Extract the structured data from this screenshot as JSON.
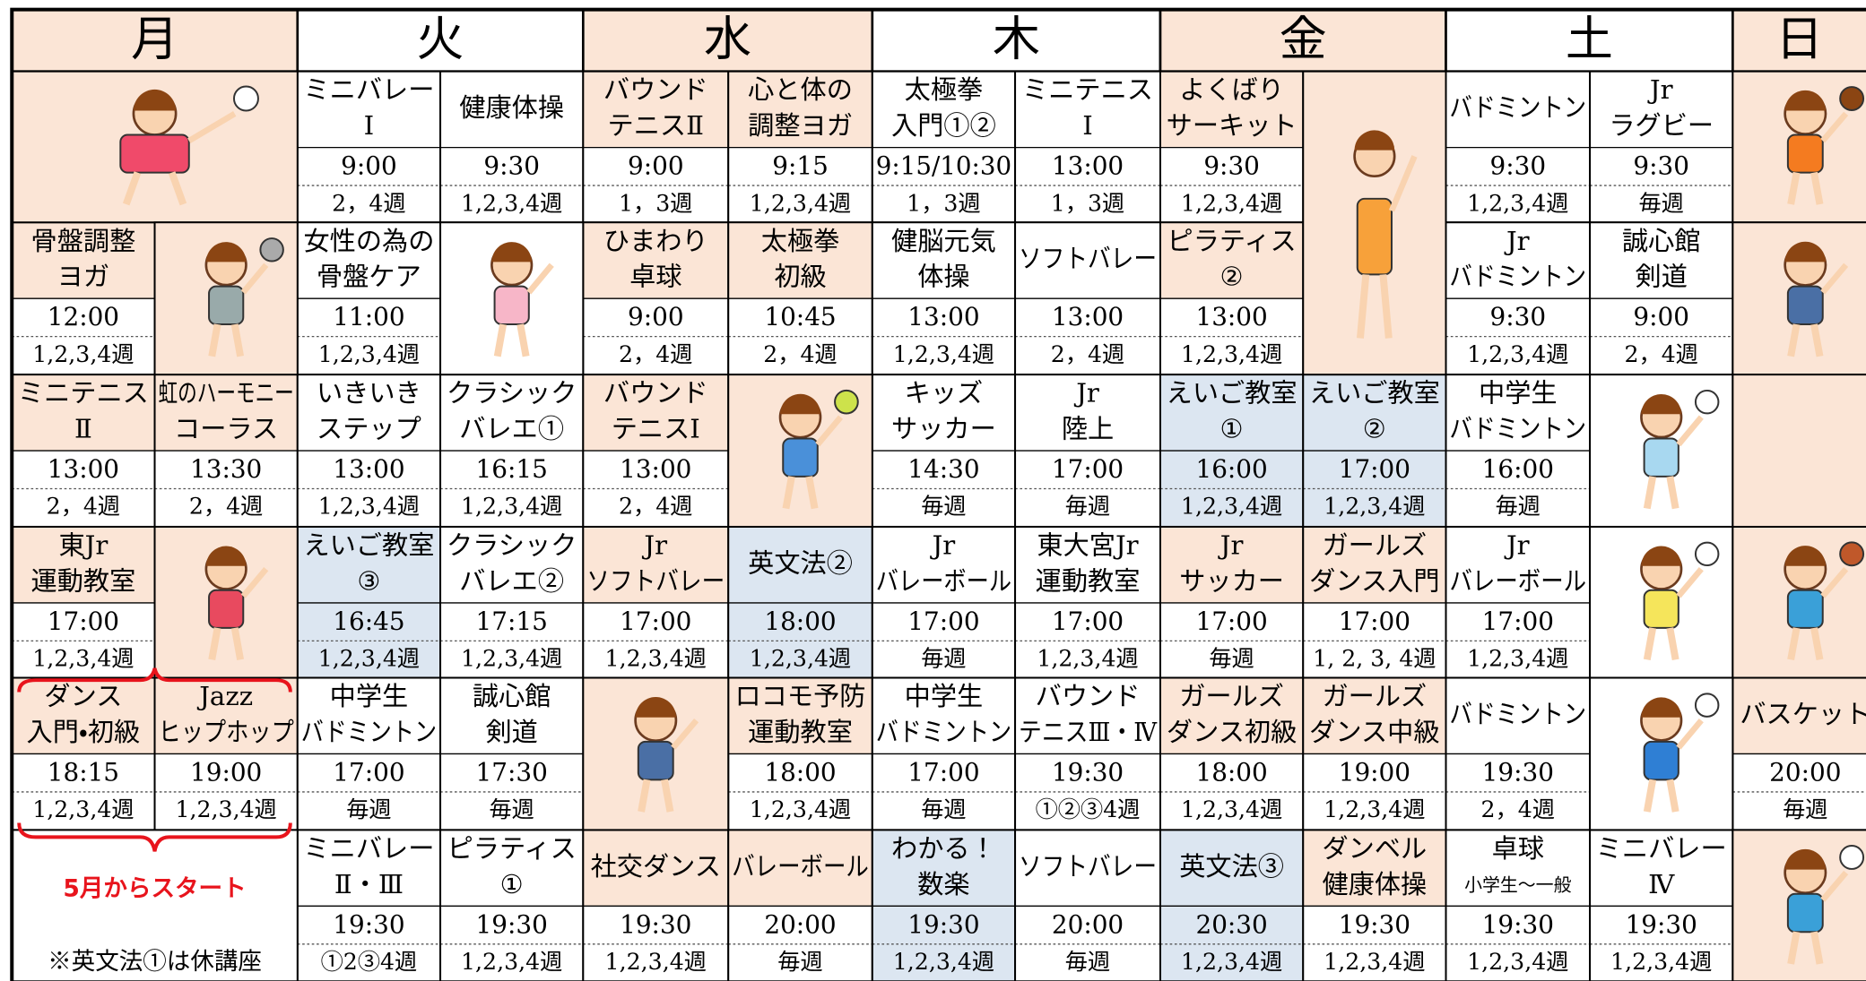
{
  "days": [
    "月",
    "火",
    "水",
    "木",
    "金",
    "土",
    "日"
  ],
  "classes": [
    {
      "name": [
        "ミニバレー",
        "Ⅰ"
      ],
      "time": "9:00",
      "weeks": "2，4週"
    },
    {
      "name": [
        "健康体操"
      ],
      "time": "9:30",
      "weeks": "1,2,3,4週"
    },
    {
      "name": [
        "バウンド",
        "テニスⅡ"
      ],
      "time": "9:00",
      "weeks": "1，3週"
    },
    {
      "name": [
        "心と体の",
        "調整ヨガ"
      ],
      "time": "9:15",
      "weeks": "1,2,3,4週"
    },
    {
      "name": [
        "太極拳",
        "入門①②"
      ],
      "time": "9:15/10:30",
      "weeks": "1，3週"
    },
    {
      "name": [
        "ミニテニス",
        "Ⅰ"
      ],
      "time": "13:00",
      "weeks": "1，3週"
    },
    {
      "name": [
        "よくばり",
        "サーキット"
      ],
      "time": "9:30",
      "weeks": "1,2,3,4週"
    },
    {
      "name": [
        "バドミントン"
      ],
      "time": "9:30",
      "weeks": "1,2,3,4週"
    },
    {
      "name": [
        "Jr",
        "ラグビー"
      ],
      "time": "9:30",
      "weeks": "毎週"
    },
    {
      "name": [
        "骨盤調整",
        "ヨガ"
      ],
      "time": "12:00",
      "weeks": "1,2,3,4週"
    },
    {
      "name": [
        "女性の為の",
        "骨盤ケア"
      ],
      "time": "11:00",
      "weeks": "1,2,3,4週"
    },
    {
      "name": [
        "ひまわり",
        "卓球"
      ],
      "time": "9:00",
      "weeks": "2，4週"
    },
    {
      "name": [
        "太極拳",
        "初級"
      ],
      "time": "10:45",
      "weeks": "2，4週"
    },
    {
      "name": [
        "健脳元気",
        "体操"
      ],
      "time": "13:00",
      "weeks": "1,2,3,4週"
    },
    {
      "name": [
        "ソフトバレー"
      ],
      "time": "13:00",
      "weeks": "2，4週"
    },
    {
      "name": [
        "ピラティス",
        "②"
      ],
      "time": "13:00",
      "weeks": "1,2,3,4週"
    },
    {
      "name": [
        "Jr",
        "バドミントン"
      ],
      "time": "9:30",
      "weeks": "1,2,3,4週"
    },
    {
      "name": [
        "誠心館",
        "剣道"
      ],
      "time": "9:00",
      "weeks": "2，4週"
    },
    {
      "name": [
        "ミニテニス",
        "Ⅱ"
      ],
      "time": "13:00",
      "weeks": "2，4週"
    },
    {
      "name": [
        "虹のハーモニー",
        "コーラス"
      ],
      "time": "13:30",
      "weeks": "2，4週"
    },
    {
      "name": [
        "いきいき",
        "ステップ"
      ],
      "time": "13:00",
      "weeks": "1,2,3,4週"
    },
    {
      "name": [
        "クラシック",
        "バレエ①"
      ],
      "time": "16:15",
      "weeks": "1,2,3,4週"
    },
    {
      "name": [
        "バウンド",
        "テニスⅠ"
      ],
      "time": "13:00",
      "weeks": "2，4週"
    },
    {
      "name": [
        "キッズ",
        "サッカー"
      ],
      "time": "14:30",
      "weeks": "毎週"
    },
    {
      "name": [
        "Jr",
        "陸上"
      ],
      "time": "17:00",
      "weeks": "毎週"
    },
    {
      "name": [
        "えいご教室",
        "①"
      ],
      "time": "16:00",
      "weeks": "1,2,3,4週"
    },
    {
      "name": [
        "えいご教室",
        "②"
      ],
      "time": "17:00",
      "weeks": "1,2,3,4週"
    },
    {
      "name": [
        "中学生",
        "バドミントン"
      ],
      "time": "16:00",
      "weeks": "毎週"
    },
    {
      "name": [
        "東Jr",
        "運動教室"
      ],
      "time": "17:00",
      "weeks": "1,2,3,4週"
    },
    {
      "name": [
        "えいご教室",
        "③"
      ],
      "time": "16:45",
      "weeks": "1,2,3,4週"
    },
    {
      "name": [
        "クラシック",
        "バレエ②"
      ],
      "time": "17:15",
      "weeks": "1,2,3,4週"
    },
    {
      "name": [
        "Jr",
        "ソフトバレー"
      ],
      "time": "17:00",
      "weeks": "1,2,3,4週"
    },
    {
      "name": [
        "英文法②"
      ],
      "time": "18:00",
      "weeks": "1,2,3,4週"
    },
    {
      "name": [
        "Jr",
        "バレーボール"
      ],
      "time": "17:00",
      "weeks": "毎週"
    },
    {
      "name": [
        "東大宮Jr",
        "運動教室"
      ],
      "time": "17:00",
      "weeks": "1,2,3,4週"
    },
    {
      "name": [
        "Jr",
        "サッカー"
      ],
      "time": "17:00",
      "weeks": "毎週"
    },
    {
      "name": [
        "ガールズ",
        "ダンス入門"
      ],
      "time": "17:00",
      "weeks": "1, 2, 3, 4週"
    },
    {
      "name": [
        "Jr",
        "バレーボール"
      ],
      "time": "17:00",
      "weeks": "1,2,3,4週"
    },
    {
      "name": [
        "ダンス",
        "入門・初級"
      ],
      "time": "18:15",
      "weeks": "1,2,3,4週"
    },
    {
      "name": [
        "Jazz",
        "ヒップホップ"
      ],
      "time": "19:00",
      "weeks": "1,2,3,4週"
    },
    {
      "name": [
        "中学生",
        "バドミントン"
      ],
      "time": "17:00",
      "weeks": "毎週"
    },
    {
      "name": [
        "誠心館",
        "剣道"
      ],
      "time": "17:30",
      "weeks": "毎週"
    },
    {
      "name": [
        "ロコモ予防",
        "運動教室"
      ],
      "time": "18:00",
      "weeks": "1,2,3,4週"
    },
    {
      "name": [
        "中学生",
        "バドミントン"
      ],
      "time": "17:00",
      "weeks": "毎週"
    },
    {
      "name": [
        "バウンド",
        "テニスⅢ・Ⅳ"
      ],
      "time": "19:30",
      "weeks": "①②③4週"
    },
    {
      "name": [
        "ガールズ",
        "ダンス初級"
      ],
      "time": "18:00",
      "weeks": "1,2,3,4週"
    },
    {
      "name": [
        "ガールズ",
        "ダンス中級"
      ],
      "time": "19:00",
      "weeks": "1,2,3,4週"
    },
    {
      "name": [
        "バドミントン"
      ],
      "time": "19:30",
      "weeks": "2，4週"
    },
    {
      "name": [
        "バスケット"
      ],
      "time": "20:00",
      "weeks": "毎週"
    },
    {
      "name": [
        "ミニバレー",
        "Ⅱ・Ⅲ"
      ],
      "time": "19:30",
      "weeks": "①2③4週"
    },
    {
      "name": [
        "ピラティス",
        "①"
      ],
      "time": "19:30",
      "weeks": "1,2,3,4週"
    },
    {
      "name": [
        "社交ダンス"
      ],
      "time": "19:30",
      "weeks": "1,2,3,4週"
    },
    {
      "name": [
        "バレーボール"
      ],
      "time": "20:00",
      "weeks": "毎週"
    },
    {
      "name": [
        "わかる！",
        "数楽"
      ],
      "time": "19:30",
      "weeks": "1,2,3,4週"
    },
    {
      "name": [
        "ソフトバレー"
      ],
      "time": "20:00",
      "weeks": "毎週"
    },
    {
      "name": [
        "英文法③"
      ],
      "time": "20:30",
      "weeks": "1,2,3,4週"
    },
    {
      "name": [
        "ダンベル",
        "健康体操"
      ],
      "time": "19:30",
      "weeks": "1,2,3,4週"
    },
    {
      "name": [
        "卓球",
        "小学生〜一般"
      ],
      "time": "19:30",
      "weeks": "1,2,3,4週"
    },
    {
      "name": [
        "ミニバレー",
        "Ⅳ"
      ],
      "time": "19:30",
      "weeks": "1,2,3,4週"
    }
  ],
  "notes": {
    "start": "5月からスタート",
    "closed": "※英文法①は休講座"
  }
}
